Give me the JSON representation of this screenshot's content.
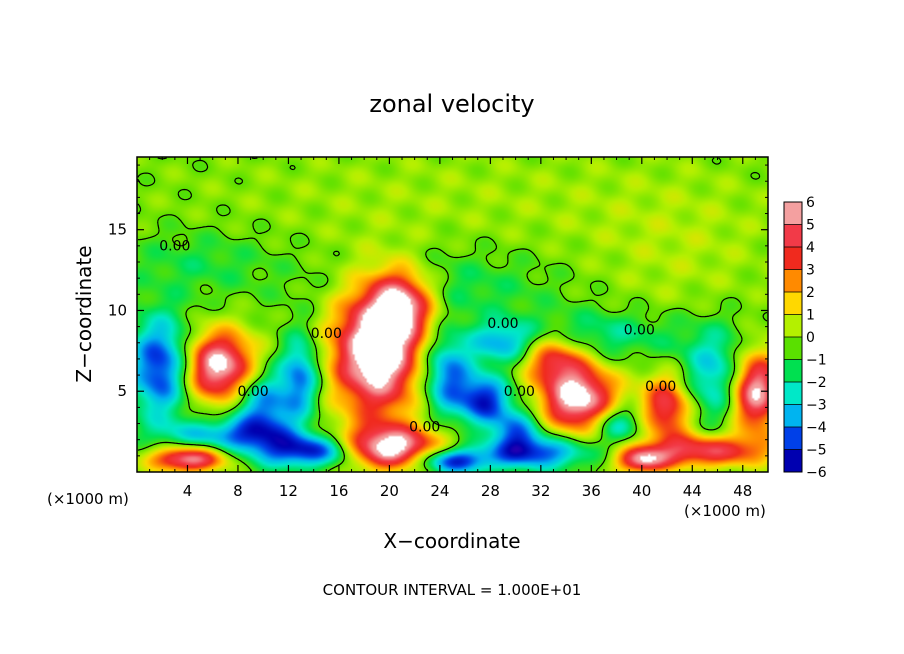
{
  "chart_data": {
    "type": "heatmap",
    "title": "zonal velocity",
    "xlabel": "X−coordinate",
    "ylabel": "Z−coordinate",
    "x_unit_left": "(×1000 m)",
    "x_unit_right": "(×1000 m)",
    "footer": "CONTOUR INTERVAL = 1.000E+01",
    "xlim": [
      0,
      50
    ],
    "ylim": [
      0,
      19.5
    ],
    "x_ticks": [
      4,
      8,
      12,
      16,
      20,
      24,
      28,
      32,
      36,
      40,
      44,
      48
    ],
    "y_ticks": [
      5,
      10,
      15
    ],
    "colorbar": {
      "levels": [
        6,
        5,
        4,
        3,
        2,
        1,
        0,
        -1,
        -2,
        -3,
        -4,
        -5,
        -6
      ],
      "colors": [
        "#f4a0a0",
        "#f23a48",
        "#f02a1e",
        "#ff8a00",
        "#ffd800",
        "#b4f000",
        "#5ae000",
        "#00e050",
        "#00e8c8",
        "#00b4f0",
        "#0040e8",
        "#0000b0",
        "#7a00b4"
      ]
    },
    "contour_labels": [
      {
        "x": 3.0,
        "z": 13.7,
        "text": "0.00"
      },
      {
        "x": 15.0,
        "z": 8.3,
        "text": "0.00"
      },
      {
        "x": 9.2,
        "z": 4.7,
        "text": "0.00"
      },
      {
        "x": 22.8,
        "z": 2.5,
        "text": "0.00"
      },
      {
        "x": 30.3,
        "z": 4.7,
        "text": "0.00"
      },
      {
        "x": 29.0,
        "z": 8.9,
        "text": "0.00"
      },
      {
        "x": 39.8,
        "z": 8.5,
        "text": "0.00"
      },
      {
        "x": 41.5,
        "z": 5.0,
        "text": "0.00"
      }
    ],
    "fields": {
      "background": 0.1,
      "blobs": [
        {
          "x": 25,
          "z": 17,
          "rx": 25,
          "rz": 4,
          "v": 0.6
        },
        {
          "x": 43,
          "z": 13,
          "rx": 8,
          "rz": 5,
          "v": 0.7
        },
        {
          "x": 24,
          "z": 11.5,
          "rx": 9,
          "rz": 2.2,
          "v": -1.2
        },
        {
          "x": 5,
          "z": 13,
          "rx": 6,
          "rz": 2,
          "v": -1.0
        },
        {
          "x": 37,
          "z": 8.5,
          "rx": 6,
          "rz": 1.5,
          "v": -1.8
        },
        {
          "x": 2,
          "z": 6.5,
          "rx": 2.5,
          "rz": 3,
          "v": -5
        },
        {
          "x": 6.5,
          "z": 6.5,
          "rx": 3,
          "rz": 2.2,
          "v": 7
        },
        {
          "x": 10,
          "z": 4,
          "rx": 2.5,
          "rz": 2.5,
          "v": -4
        },
        {
          "x": 13,
          "z": 6,
          "rx": 1.5,
          "rz": 2.5,
          "v": -3.5
        },
        {
          "x": 7,
          "z": 2.3,
          "rx": 5,
          "rz": 1,
          "v": -3
        },
        {
          "x": 19,
          "z": 7.5,
          "rx": 3.5,
          "rz": 4,
          "v": 8
        },
        {
          "x": 21,
          "z": 10.5,
          "rx": 2.5,
          "rz": 2,
          "v": 5
        },
        {
          "x": 24.5,
          "z": 6,
          "rx": 2,
          "rz": 2.5,
          "v": -4
        },
        {
          "x": 20,
          "z": 1.5,
          "rx": 4,
          "rz": 1.3,
          "v": 7
        },
        {
          "x": 14,
          "z": 1.3,
          "rx": 4,
          "rz": 1,
          "v": -5
        },
        {
          "x": 27.5,
          "z": 4.5,
          "rx": 2,
          "rz": 1.5,
          "v": -4.5
        },
        {
          "x": 29,
          "z": 8,
          "rx": 2.5,
          "rz": 1.3,
          "v": -3
        },
        {
          "x": 33,
          "z": 7,
          "rx": 2.5,
          "rz": 1.5,
          "v": 4
        },
        {
          "x": 35,
          "z": 4.5,
          "rx": 3,
          "rz": 2,
          "v": 7
        },
        {
          "x": 30,
          "z": 2.5,
          "rx": 2,
          "rz": 1.5,
          "v": -3.5
        },
        {
          "x": 38,
          "z": 3,
          "rx": 2,
          "rz": 1.2,
          "v": -3
        },
        {
          "x": 42,
          "z": 4,
          "rx": 2,
          "rz": 2,
          "v": 5
        },
        {
          "x": 46,
          "z": 6,
          "rx": 3,
          "rz": 3,
          "v": -3
        },
        {
          "x": 49,
          "z": 5,
          "rx": 2,
          "rz": 2.5,
          "v": 7
        },
        {
          "x": 32,
          "z": 1.2,
          "rx": 4,
          "rz": 1,
          "v": -4
        },
        {
          "x": 45,
          "z": 1.3,
          "rx": 5,
          "rz": 1,
          "v": 5
        },
        {
          "x": 4,
          "z": 0.8,
          "rx": 3,
          "rz": 0.8,
          "v": 6
        },
        {
          "x": 25,
          "z": 0.7,
          "rx": 3,
          "rz": 0.8,
          "v": -5
        },
        {
          "x": 40,
          "z": 0.7,
          "rx": 2,
          "rz": 0.8,
          "v": 5
        }
      ]
    }
  }
}
